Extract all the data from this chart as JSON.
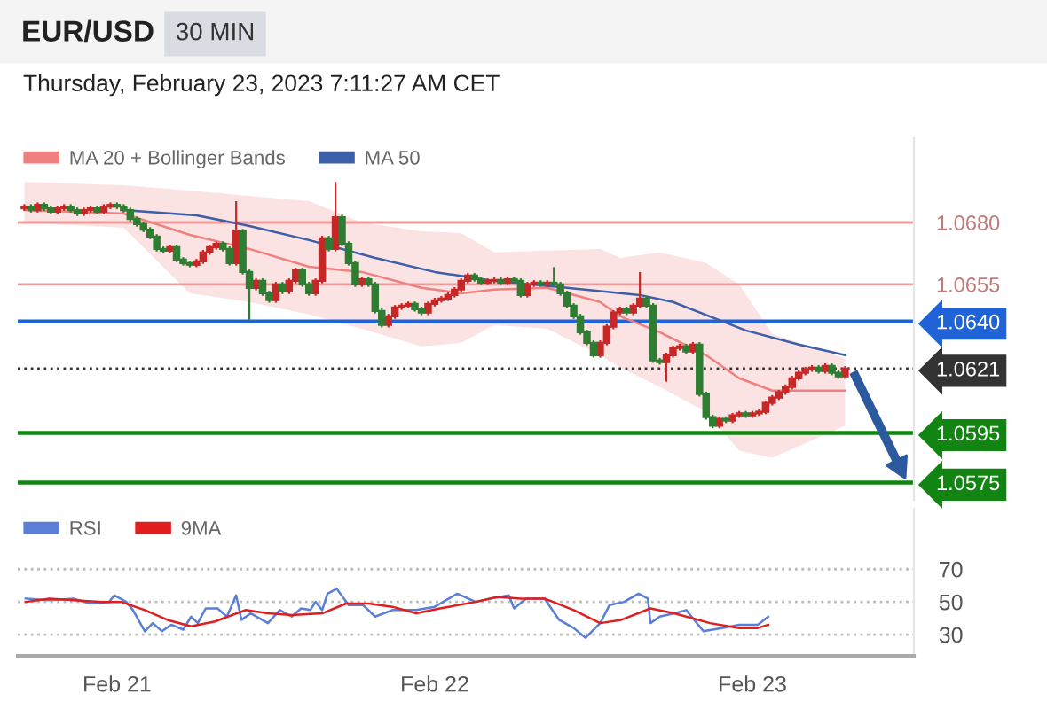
{
  "chart_data": [
    {
      "type": "candlestick",
      "title": "EUR/USD",
      "subtitle": "30 MIN",
      "annotations": [
        "Thursday, February 23, 2023 7:11:27 AM CET"
      ],
      "xlim": [
        "2023-02-20T16:30",
        "2023-02-23T12:12"
      ],
      "ylim": [
        1.0568,
        1.0714
      ],
      "yticks": [
        {
          "value": 1.068,
          "label": "1.0680"
        },
        {
          "value": 1.0655,
          "label": "1.0655"
        },
        {
          "value": 1.064,
          "label": "1.0640"
        },
        {
          "value": 1.0621,
          "label": "1.0621"
        },
        {
          "value": 1.0595,
          "label": "1.0595"
        },
        {
          "value": 1.0575,
          "label": "1.0575"
        }
      ],
      "tick_labels": "y",
      "legend": "top left",
      "series": [
        {
          "type": "candlestick",
          "color": "#c62828",
          "x": [
            "2023-02-20T17:00",
            "2023-02-20T18:00",
            "2023-02-20T19:30",
            "2023-02-20T20:00",
            "2023-02-20T21:30",
            "2023-02-20T22:00",
            "2023-02-20T23:00",
            "2023-02-20T23:30",
            "2023-02-21T04:00",
            "2023-02-21T06:00",
            "2023-02-21T06:30",
            "2023-02-21T07:00",
            "2023-02-21T07:30",
            "2023-02-21T09:00",
            "2023-02-21T10:30",
            "2023-02-21T12:00",
            "2023-02-21T13:00",
            "2023-02-21T13:30",
            "2023-02-21T15:00",
            "2023-02-21T15:30",
            "2023-02-21T16:30",
            "2023-02-21T18:30",
            "2023-02-21T20:30",
            "2023-02-21T21:00",
            "2023-02-21T21:30",
            "2023-02-21T22:00",
            "2023-02-21T23:30",
            "2023-02-22T00:00",
            "2023-02-22T00:30",
            "2023-02-22T01:00",
            "2023-02-22T01:30",
            "2023-02-22T02:00",
            "2023-02-22T02:30",
            "2023-02-22T04:00",
            "2023-02-22T04:30",
            "2023-02-22T05:30",
            "2023-02-22T07:00",
            "2023-02-22T07:30",
            "2023-02-22T08:30",
            "2023-02-22T12:30",
            "2023-02-22T13:00",
            "2023-02-22T13:30",
            "2023-02-22T14:00",
            "2023-02-22T15:00",
            "2023-02-22T15:30",
            "2023-02-22T17:30",
            "2023-02-22T18:00",
            "2023-02-22T18:30",
            "2023-02-22T19:30",
            "2023-02-22T21:30",
            "2023-02-22T22:30",
            "2023-02-22T23:00",
            "2023-02-23T00:00",
            "2023-02-23T00:30",
            "2023-02-23T01:00",
            "2023-02-23T01:30",
            "2023-02-23T02:00",
            "2023-02-23T02:30",
            "2023-02-23T03:00",
            "2023-02-23T03:30",
            "2023-02-23T04:00",
            "2023-02-23T04:30",
            "2023-02-23T05:30",
            "2023-02-23T07:00"
          ],
          "ohlc": [
            [
              1.06857,
              1.06874,
              1.06847,
              1.06864
            ],
            [
              1.0685,
              1.06881,
              1.0684,
              1.06871
            ],
            [
              1.06843,
              1.06867,
              1.06833,
              1.06857
            ],
            [
              1.06857,
              1.06874,
              1.06847,
              1.06864
            ],
            [
              1.06836,
              1.0686,
              1.06826,
              1.0685
            ],
            [
              1.0685,
              1.06867,
              1.0684,
              1.06857
            ],
            [
              1.06843,
              1.06874,
              1.06833,
              1.06864
            ],
            [
              1.06864,
              1.06881,
              1.06854,
              1.06871
            ],
            [
              1.06686,
              1.0671,
              1.06676,
              1.067
            ],
            [
              1.06629,
              1.06653,
              1.06619,
              1.06643
            ],
            [
              1.06643,
              1.06689,
              1.06633,
              1.06679
            ],
            [
              1.06679,
              1.0671,
              1.06669,
              1.067
            ],
            [
              1.067,
              1.06724,
              1.0669,
              1.06714
            ],
            [
              1.06636,
              1.06886,
              1.06626,
              1.06764
            ],
            [
              1.06536,
              1.06574,
              1.06526,
              1.06564
            ],
            [
              1.06486,
              1.0656,
              1.06476,
              1.0655
            ],
            [
              1.06521,
              1.06574,
              1.06511,
              1.06564
            ],
            [
              1.06564,
              1.06617,
              1.06554,
              1.06607
            ],
            [
              1.06514,
              1.06574,
              1.06504,
              1.06564
            ],
            [
              1.06564,
              1.06746,
              1.06554,
              1.06736
            ],
            [
              1.06693,
              1.06964,
              1.06683,
              1.06821
            ],
            [
              1.0655,
              1.06581,
              1.0654,
              1.06571
            ],
            [
              1.06386,
              1.06431,
              1.06376,
              1.06421
            ],
            [
              1.06421,
              1.06467,
              1.06411,
              1.06457
            ],
            [
              1.06457,
              1.06474,
              1.06447,
              1.06464
            ],
            [
              1.06464,
              1.06481,
              1.06454,
              1.06471
            ],
            [
              1.06436,
              1.06481,
              1.06426,
              1.06471
            ],
            [
              1.06471,
              1.06496,
              1.06461,
              1.06486
            ],
            [
              1.06486,
              1.06503,
              1.06476,
              1.06493
            ],
            [
              1.06493,
              1.06517,
              1.06483,
              1.06507
            ],
            [
              1.06507,
              1.06539,
              1.06497,
              1.06529
            ],
            [
              1.06529,
              1.06574,
              1.06519,
              1.06564
            ],
            [
              1.06564,
              1.06596,
              1.06554,
              1.06586
            ],
            [
              1.06557,
              1.06574,
              1.06547,
              1.06564
            ],
            [
              1.06564,
              1.06578,
              1.06554,
              1.06568
            ],
            [
              1.06557,
              1.06581,
              1.06547,
              1.06571
            ],
            [
              1.06507,
              1.0656,
              1.06497,
              1.0655
            ],
            [
              1.0655,
              1.06567,
              1.0654,
              1.06557
            ],
            [
              1.0655,
              1.06567,
              1.0654,
              1.06557
            ],
            [
              1.06264,
              1.06324,
              1.06254,
              1.06314
            ],
            [
              1.06314,
              1.06389,
              1.06304,
              1.06379
            ],
            [
              1.06379,
              1.06446,
              1.06369,
              1.06436
            ],
            [
              1.06436,
              1.0646,
              1.06426,
              1.0645
            ],
            [
              1.06436,
              1.06474,
              1.06426,
              1.06464
            ],
            [
              1.06464,
              1.066,
              1.06454,
              1.06493
            ],
            [
              1.06236,
              1.06274,
              1.06157,
              1.06264
            ],
            [
              1.06264,
              1.06303,
              1.06254,
              1.06293
            ],
            [
              1.06293,
              1.0631,
              1.06283,
              1.063
            ],
            [
              1.06279,
              1.06317,
              1.06269,
              1.06307
            ],
            [
              1.05979,
              1.06017,
              1.05969,
              1.06007
            ],
            [
              1.06,
              1.06031,
              1.0599,
              1.06021
            ],
            [
              1.06021,
              1.06039,
              1.06011,
              1.06029
            ],
            [
              1.06021,
              1.06039,
              1.06011,
              1.06029
            ],
            [
              1.06029,
              1.06046,
              1.06019,
              1.06036
            ],
            [
              1.06036,
              1.06081,
              1.06026,
              1.06071
            ],
            [
              1.06071,
              1.06103,
              1.06061,
              1.06093
            ],
            [
              1.06093,
              1.06124,
              1.06083,
              1.06114
            ],
            [
              1.06114,
              1.06146,
              1.06104,
              1.06136
            ],
            [
              1.06136,
              1.06181,
              1.06126,
              1.06171
            ],
            [
              1.06171,
              1.06203,
              1.06161,
              1.06193
            ],
            [
              1.06193,
              1.06217,
              1.06183,
              1.06207
            ],
            [
              1.06207,
              1.06224,
              1.06197,
              1.06214
            ],
            [
              1.062,
              1.06231,
              1.0619,
              1.06221
            ],
            [
              1.06179,
              1.0622,
              1.06169,
              1.0621
            ]
          ]
        },
        {
          "type": "candlestick",
          "color": "#2e7d32",
          "x": [
            "2023-02-20T17:30",
            "2023-02-20T18:30",
            "2023-02-20T19:00",
            "2023-02-20T20:30",
            "2023-02-20T21:00",
            "2023-02-20T22:30",
            "2023-02-21T00:00",
            "2023-02-21T00:30",
            "2023-02-21T01:00",
            "2023-02-21T01:30",
            "2023-02-21T02:00",
            "2023-02-21T02:30",
            "2023-02-21T03:00",
            "2023-02-21T03:30",
            "2023-02-21T04:30",
            "2023-02-21T05:00",
            "2023-02-21T05:30",
            "2023-02-21T08:00",
            "2023-02-21T08:30",
            "2023-02-21T09:30",
            "2023-02-21T10:00",
            "2023-02-21T11:00",
            "2023-02-21T11:30",
            "2023-02-21T12:30",
            "2023-02-21T14:00",
            "2023-02-21T14:30",
            "2023-02-21T16:00",
            "2023-02-21T17:00",
            "2023-02-21T17:30",
            "2023-02-21T18:00",
            "2023-02-21T19:00",
            "2023-02-21T19:30",
            "2023-02-21T20:00",
            "2023-02-21T22:30",
            "2023-02-21T23:00",
            "2023-02-22T03:00",
            "2023-02-22T03:30",
            "2023-02-22T05:00",
            "2023-02-22T06:00",
            "2023-02-22T06:30",
            "2023-02-22T08:00",
            "2023-02-22T09:00",
            "2023-02-22T09:30",
            "2023-02-22T10:00",
            "2023-02-22T10:30",
            "2023-02-22T11:00",
            "2023-02-22T11:30",
            "2023-02-22T12:00",
            "2023-02-22T14:30",
            "2023-02-22T16:00",
            "2023-02-22T16:30",
            "2023-02-22T17:00",
            "2023-02-22T19:00",
            "2023-02-22T20:00",
            "2023-02-22T20:30",
            "2023-02-22T21:00",
            "2023-02-22T22:00",
            "2023-02-22T23:30",
            "2023-02-23T05:00",
            "2023-02-23T06:00",
            "2023-02-23T06:30"
          ],
          "ohlc": [
            [
              1.06864,
              1.06874,
              1.0684,
              1.0685
            ],
            [
              1.06871,
              1.06881,
              1.06847,
              1.06857
            ],
            [
              1.06857,
              1.06867,
              1.06833,
              1.06843
            ],
            [
              1.06864,
              1.06874,
              1.0684,
              1.0685
            ],
            [
              1.0685,
              1.0686,
              1.06826,
              1.06836
            ],
            [
              1.06857,
              1.06867,
              1.06833,
              1.06843
            ],
            [
              1.06871,
              1.06881,
              1.06854,
              1.06864
            ],
            [
              1.06864,
              1.06874,
              1.0684,
              1.0685
            ],
            [
              1.0685,
              1.0686,
              1.06804,
              1.06814
            ],
            [
              1.06814,
              1.06824,
              1.06783,
              1.06793
            ],
            [
              1.06793,
              1.06803,
              1.06761,
              1.06771
            ],
            [
              1.06771,
              1.06781,
              1.06733,
              1.06743
            ],
            [
              1.06743,
              1.06753,
              1.06683,
              1.06693
            ],
            [
              1.06693,
              1.06703,
              1.06676,
              1.06686
            ],
            [
              1.067,
              1.0671,
              1.0664,
              1.0665
            ],
            [
              1.0665,
              1.0666,
              1.06626,
              1.06636
            ],
            [
              1.06636,
              1.06646,
              1.06619,
              1.06629
            ],
            [
              1.06714,
              1.06724,
              1.06683,
              1.06693
            ],
            [
              1.06693,
              1.06703,
              1.06626,
              1.06636
            ],
            [
              1.06764,
              1.06774,
              1.0659,
              1.066
            ],
            [
              1.066,
              1.0661,
              1.06407,
              1.06536
            ],
            [
              1.06564,
              1.06574,
              1.06504,
              1.06514
            ],
            [
              1.06514,
              1.06524,
              1.06476,
              1.06486
            ],
            [
              1.0655,
              1.0656,
              1.06511,
              1.06521
            ],
            [
              1.06607,
              1.06617,
              1.0654,
              1.0655
            ],
            [
              1.0655,
              1.0656,
              1.06504,
              1.06514
            ],
            [
              1.06736,
              1.06746,
              1.06683,
              1.06693
            ],
            [
              1.06821,
              1.06831,
              1.06704,
              1.06714
            ],
            [
              1.06714,
              1.06724,
              1.06626,
              1.06636
            ],
            [
              1.06636,
              1.06646,
              1.0654,
              1.0655
            ],
            [
              1.06571,
              1.06581,
              1.0654,
              1.0655
            ],
            [
              1.0655,
              1.0656,
              1.06433,
              1.06443
            ],
            [
              1.06443,
              1.06453,
              1.06376,
              1.06386
            ],
            [
              1.06471,
              1.06481,
              1.0644,
              1.0645
            ],
            [
              1.0645,
              1.0646,
              1.06426,
              1.06436
            ],
            [
              1.06586,
              1.06596,
              1.06561,
              1.06571
            ],
            [
              1.06571,
              1.06581,
              1.06547,
              1.06557
            ],
            [
              1.06568,
              1.06578,
              1.06547,
              1.06557
            ],
            [
              1.06571,
              1.06581,
              1.06554,
              1.06564
            ],
            [
              1.06564,
              1.06574,
              1.06497,
              1.06507
            ],
            [
              1.06557,
              1.06567,
              1.0654,
              1.0655
            ],
            [
              1.06557,
              1.0662,
              1.0654,
              1.0655
            ],
            [
              1.0655,
              1.0656,
              1.06504,
              1.06514
            ],
            [
              1.06514,
              1.06524,
              1.06454,
              1.06464
            ],
            [
              1.06464,
              1.06474,
              1.06411,
              1.06421
            ],
            [
              1.06421,
              1.06431,
              1.06347,
              1.06357
            ],
            [
              1.06357,
              1.06367,
              1.06304,
              1.06314
            ],
            [
              1.06314,
              1.06324,
              1.06254,
              1.06264
            ],
            [
              1.0645,
              1.0646,
              1.06426,
              1.06436
            ],
            [
              1.06493,
              1.06503,
              1.06454,
              1.06464
            ],
            [
              1.06464,
              1.06474,
              1.06233,
              1.06243
            ],
            [
              1.06243,
              1.06253,
              1.06226,
              1.06236
            ],
            [
              1.063,
              1.0631,
              1.06269,
              1.06279
            ],
            [
              1.06307,
              1.06317,
              1.06097,
              1.06107
            ],
            [
              1.06107,
              1.06117,
              1.06004,
              1.06014
            ],
            [
              1.06014,
              1.06024,
              1.05969,
              1.05979
            ],
            [
              1.06007,
              1.06017,
              1.0599,
              1.06
            ],
            [
              1.06029,
              1.06039,
              1.06011,
              1.06021
            ],
            [
              1.06214,
              1.06224,
              1.0619,
              1.062
            ],
            [
              1.06221,
              1.06231,
              1.06183,
              1.06193
            ],
            [
              1.06193,
              1.06203,
              1.06169,
              1.06179
            ]
          ]
        },
        {
          "type": "line",
          "name": "MA 20 + Bollinger Bands",
          "color": "#f08080",
          "x": [
            "2023-02-20T17:00",
            "2023-02-21T00:30",
            "2023-02-21T05:30",
            "2023-02-21T10:00",
            "2023-02-21T14:30",
            "2023-02-21T18:30",
            "2023-02-21T23:00",
            "2023-02-22T02:00",
            "2023-02-22T04:30",
            "2023-02-22T08:30",
            "2023-02-22T12:30",
            "2023-02-22T14:00",
            "2023-02-22T17:00",
            "2023-02-22T20:30",
            "2023-02-22T23:00",
            "2023-02-23T01:30",
            "2023-02-23T07:00"
          ],
          "values": [
            1.0685,
            1.06836,
            1.0675,
            1.06693,
            1.06621,
            1.066,
            1.06536,
            1.06514,
            1.06529,
            1.06536,
            1.06479,
            1.06421,
            1.06357,
            1.06264,
            1.06171,
            1.06121,
            1.06121
          ],
          "upper": [
            1.06964,
            1.0695,
            1.06929,
            1.06907,
            1.06886,
            1.068,
            1.06764,
            1.06757,
            1.06679,
            1.06686,
            1.06693,
            1.06657,
            1.06679,
            1.06636,
            1.0655,
            1.0635,
            1.0625
          ],
          "lower": [
            1.068,
            1.06779,
            1.06514,
            1.06479,
            1.06429,
            1.06371,
            1.063,
            1.06314,
            1.06386,
            1.06371,
            1.06264,
            1.06214,
            1.06136,
            1.06036,
            1.05879,
            1.0585,
            1.05979
          ]
        },
        {
          "type": "line",
          "name": "MA 50",
          "color": "#3d5fa8",
          "x": [
            "2023-02-21T00:30",
            "2023-02-21T06:00",
            "2023-02-21T10:00",
            "2023-02-21T14:30",
            "2023-02-21T19:30",
            "2023-02-22T00:00",
            "2023-02-22T04:30",
            "2023-02-22T10:00",
            "2023-02-22T15:30",
            "2023-02-22T18:00",
            "2023-02-22T23:30",
            "2023-02-23T03:30",
            "2023-02-23T07:00"
          ],
          "values": [
            1.0685,
            1.06829,
            1.06786,
            1.06729,
            1.06657,
            1.066,
            1.06564,
            1.06536,
            1.06507,
            1.06479,
            1.06364,
            1.06307,
            1.06264
          ]
        }
      ],
      "ref_lines": [
        {
          "axis": "y",
          "value": 1.068,
          "color": "#f29a9a"
        },
        {
          "axis": "y",
          "value": 1.0655,
          "color": "#f29a9a"
        },
        {
          "axis": "y",
          "value": 1.064,
          "color": "#1f63d6"
        },
        {
          "axis": "y",
          "value": 1.0621,
          "color": "#333333",
          "line_style": "dotted"
        },
        {
          "axis": "y",
          "value": 1.0595,
          "color": "#128412"
        },
        {
          "axis": "y",
          "value": 1.0575,
          "color": "#128412"
        }
      ]
    },
    {
      "type": "line",
      "xlim": [
        "2023-02-20T16:30",
        "2023-02-23T12:12"
      ],
      "ylim": [
        17,
        107
      ],
      "yticks": [
        30,
        50,
        70
      ],
      "xticks": [
        {
          "value": "2023-02-21",
          "label": "Feb 21"
        },
        {
          "value": "2023-02-22",
          "label": "Feb 22"
        },
        {
          "value": "2023-02-23",
          "label": "Feb 23"
        }
      ],
      "grid": "y",
      "legend": "top left",
      "series": [
        {
          "name": "RSI",
          "color": "#5b7fd6",
          "x": [
            "2023-02-20T17:06",
            "2023-02-20T18:54",
            "2023-02-20T20:42",
            "2023-02-20T22:00",
            "2023-02-20T23:24",
            "2023-02-20T23:48",
            "2023-02-21T00:42",
            "2023-02-21T01:12",
            "2023-02-21T02:06",
            "2023-02-21T02:42",
            "2023-02-21T03:24",
            "2023-02-21T04:06",
            "2023-02-21T05:00",
            "2023-02-21T05:36",
            "2023-02-21T06:06",
            "2023-02-21T06:42",
            "2023-02-21T07:36",
            "2023-02-21T08:18",
            "2023-02-21T09:00",
            "2023-02-21T09:24",
            "2023-02-21T10:06",
            "2023-02-21T11:24",
            "2023-02-21T12:18",
            "2023-02-21T13:12",
            "2023-02-21T13:54",
            "2023-02-21T14:36",
            "2023-02-21T15:00",
            "2023-02-21T15:30",
            "2023-02-21T15:54",
            "2023-02-21T16:36",
            "2023-02-21T17:30",
            "2023-02-21T18:36",
            "2023-02-21T19:30",
            "2023-02-21T20:48",
            "2023-02-21T22:36",
            "2023-02-22T00:00",
            "2023-02-22T01:42",
            "2023-02-22T03:06",
            "2023-02-22T04:12",
            "2023-02-22T05:36",
            "2023-02-22T06:00",
            "2023-02-22T06:54",
            "2023-02-22T08:18",
            "2023-02-22T09:24",
            "2023-02-22T10:30",
            "2023-02-22T11:24",
            "2023-02-22T12:30",
            "2023-02-22T13:12",
            "2023-02-22T14:18",
            "2023-02-22T15:24",
            "2023-02-22T16:06",
            "2023-02-22T16:18",
            "2023-02-22T17:00",
            "2023-02-22T18:06",
            "2023-02-22T19:00",
            "2023-02-22T20:18",
            "2023-02-22T21:42",
            "2023-02-22T23:00",
            "2023-02-23T00:24",
            "2023-02-23T01:12"
          ],
          "values": [
            52,
            51,
            52,
            49,
            50,
            54,
            50,
            45,
            32,
            37,
            32,
            36,
            33,
            41,
            37,
            46,
            46,
            41,
            54,
            39,
            43,
            37,
            45,
            41,
            46,
            45,
            50,
            45,
            55,
            58,
            48,
            48,
            41,
            45,
            45,
            47,
            55,
            50,
            52,
            54,
            46,
            52,
            52,
            39,
            34,
            28,
            37,
            48,
            50,
            55,
            52,
            37,
            41,
            43,
            45,
            32,
            34,
            36,
            36,
            41
          ]
        },
        {
          "name": "9MA",
          "color": "#e01e1e",
          "x": [
            "2023-02-20T17:06",
            "2023-02-20T18:54",
            "2023-02-20T20:42",
            "2023-02-20T22:54",
            "2023-02-21T00:18",
            "2023-02-21T02:06",
            "2023-02-21T03:48",
            "2023-02-21T05:36",
            "2023-02-21T07:24",
            "2023-02-21T09:42",
            "2023-02-21T11:24",
            "2023-02-21T13:12",
            "2023-02-21T15:30",
            "2023-02-21T17:18",
            "2023-02-21T19:00",
            "2023-02-21T20:48",
            "2023-02-21T22:36",
            "2023-02-22T00:24",
            "2023-02-22T03:06",
            "2023-02-22T04:42",
            "2023-02-22T06:30",
            "2023-02-22T08:18",
            "2023-02-22T10:30",
            "2023-02-22T12:30",
            "2023-02-22T14:06",
            "2023-02-22T16:18",
            "2023-02-22T18:06",
            "2023-02-22T20:48",
            "2023-02-22T23:00",
            "2023-02-23T00:24",
            "2023-02-23T01:12"
          ],
          "values": [
            50,
            52,
            51,
            50,
            50,
            45,
            39,
            35,
            38,
            45,
            43,
            42,
            43,
            49,
            49,
            47,
            43,
            46,
            50,
            53,
            52,
            52,
            45,
            37,
            39,
            46,
            43,
            37,
            34,
            34,
            36
          ]
        }
      ]
    }
  ]
}
